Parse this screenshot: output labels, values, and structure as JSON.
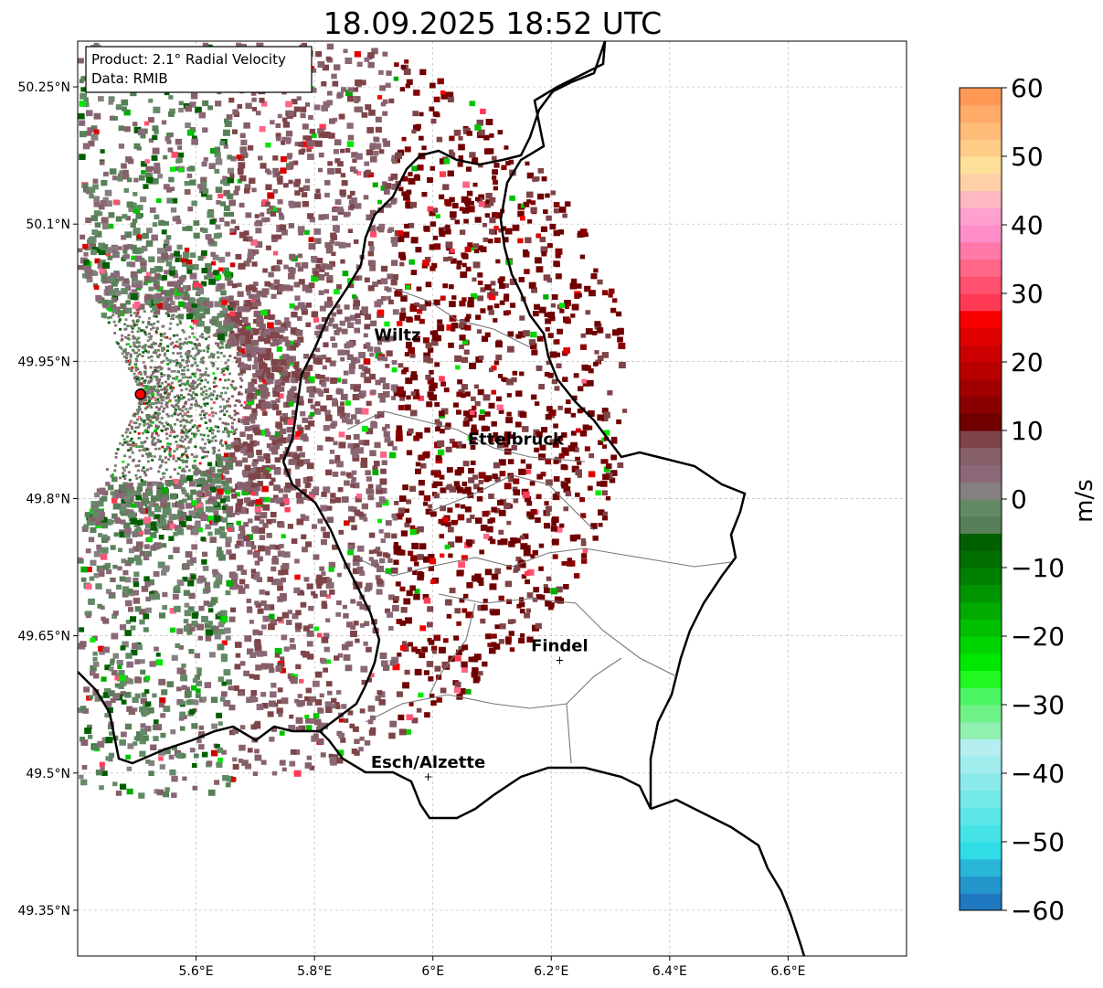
{
  "chart_data": {
    "type": "heatmap",
    "title": "18.09.2025 18:52 UTC",
    "info_box": [
      "Product: 2.1° Radial Velocity",
      "Data: RMIB"
    ],
    "xlim": [
      5.4,
      6.8
    ],
    "ylim": [
      49.3,
      50.3
    ],
    "x_ticks": [
      {
        "v": 5.6,
        "label": "5.6°E"
      },
      {
        "v": 5.8,
        "label": "5.8°E"
      },
      {
        "v": 6.0,
        "label": "6°E"
      },
      {
        "v": 6.2,
        "label": "6.2°E"
      },
      {
        "v": 6.4,
        "label": "6.4°E"
      },
      {
        "v": 6.6,
        "label": "6.6°E"
      }
    ],
    "y_ticks": [
      {
        "v": 50.25,
        "label": "50.25°N"
      },
      {
        "v": 50.1,
        "label": "50.1°N"
      },
      {
        "v": 49.95,
        "label": "49.95°N"
      },
      {
        "v": 49.8,
        "label": "49.8°N"
      },
      {
        "v": 49.65,
        "label": "49.65°N"
      },
      {
        "v": 49.5,
        "label": "49.5°N"
      },
      {
        "v": 49.35,
        "label": "49.35°N"
      }
    ],
    "grid": true,
    "radar_site": {
      "lon": 5.506,
      "lat": 49.914,
      "color": "#ff0000"
    },
    "cities": [
      {
        "name": "Wiltz",
        "lon": 5.94,
        "lat": 49.977,
        "marker": false
      },
      {
        "name": "Ettelbruck",
        "lon": 6.14,
        "lat": 49.863,
        "marker": false
      },
      {
        "name": "Findel",
        "lon": 6.214,
        "lat": 49.623,
        "marker": true
      },
      {
        "name": "Esch/Alzette",
        "lon": 5.992,
        "lat": 49.496,
        "marker": true
      }
    ],
    "colorbar": {
      "label": "m/s",
      "range": [
        -60,
        60
      ],
      "ticks": [
        {
          "v": 60,
          "label": "60"
        },
        {
          "v": 50,
          "label": "50"
        },
        {
          "v": 40,
          "label": "40"
        },
        {
          "v": 30,
          "label": "30"
        },
        {
          "v": 20,
          "label": "20"
        },
        {
          "v": 10,
          "label": "10"
        },
        {
          "v": 0,
          "label": "0"
        },
        {
          "v": -10,
          "label": "−10"
        },
        {
          "v": -20,
          "label": "−20"
        },
        {
          "v": -30,
          "label": "−30"
        },
        {
          "v": -40,
          "label": "−40"
        },
        {
          "v": -50,
          "label": "−50"
        },
        {
          "v": -60,
          "label": "−60"
        }
      ],
      "colors": [
        "#1f78c0",
        "#2596cc",
        "#29b6d8",
        "#30dde6",
        "#45e2e6",
        "#5ce5e6",
        "#72e8e8",
        "#8aeaea",
        "#a0ecec",
        "#b4eeee",
        "#90f0b0",
        "#6ff288",
        "#4cf564",
        "#20f820",
        "#00e800",
        "#00d400",
        "#00c000",
        "#00aa00",
        "#009400",
        "#008000",
        "#006e00",
        "#006000",
        "#588058",
        "#628a66",
        "#868080",
        "#8a6878",
        "#866068",
        "#7e4448",
        "#700000",
        "#880000",
        "#a00000",
        "#b80000",
        "#cc0000",
        "#e00000",
        "#f80000",
        "#ff3a55",
        "#ff5070",
        "#ff6688",
        "#ff7aa8",
        "#ff8ec8",
        "#ffa0d0",
        "#ffb8c0",
        "#ffd0a8",
        "#ffe09a",
        "#ffcc88",
        "#ffbb78",
        "#ffaa66",
        "#ff9955"
      ]
    }
  }
}
